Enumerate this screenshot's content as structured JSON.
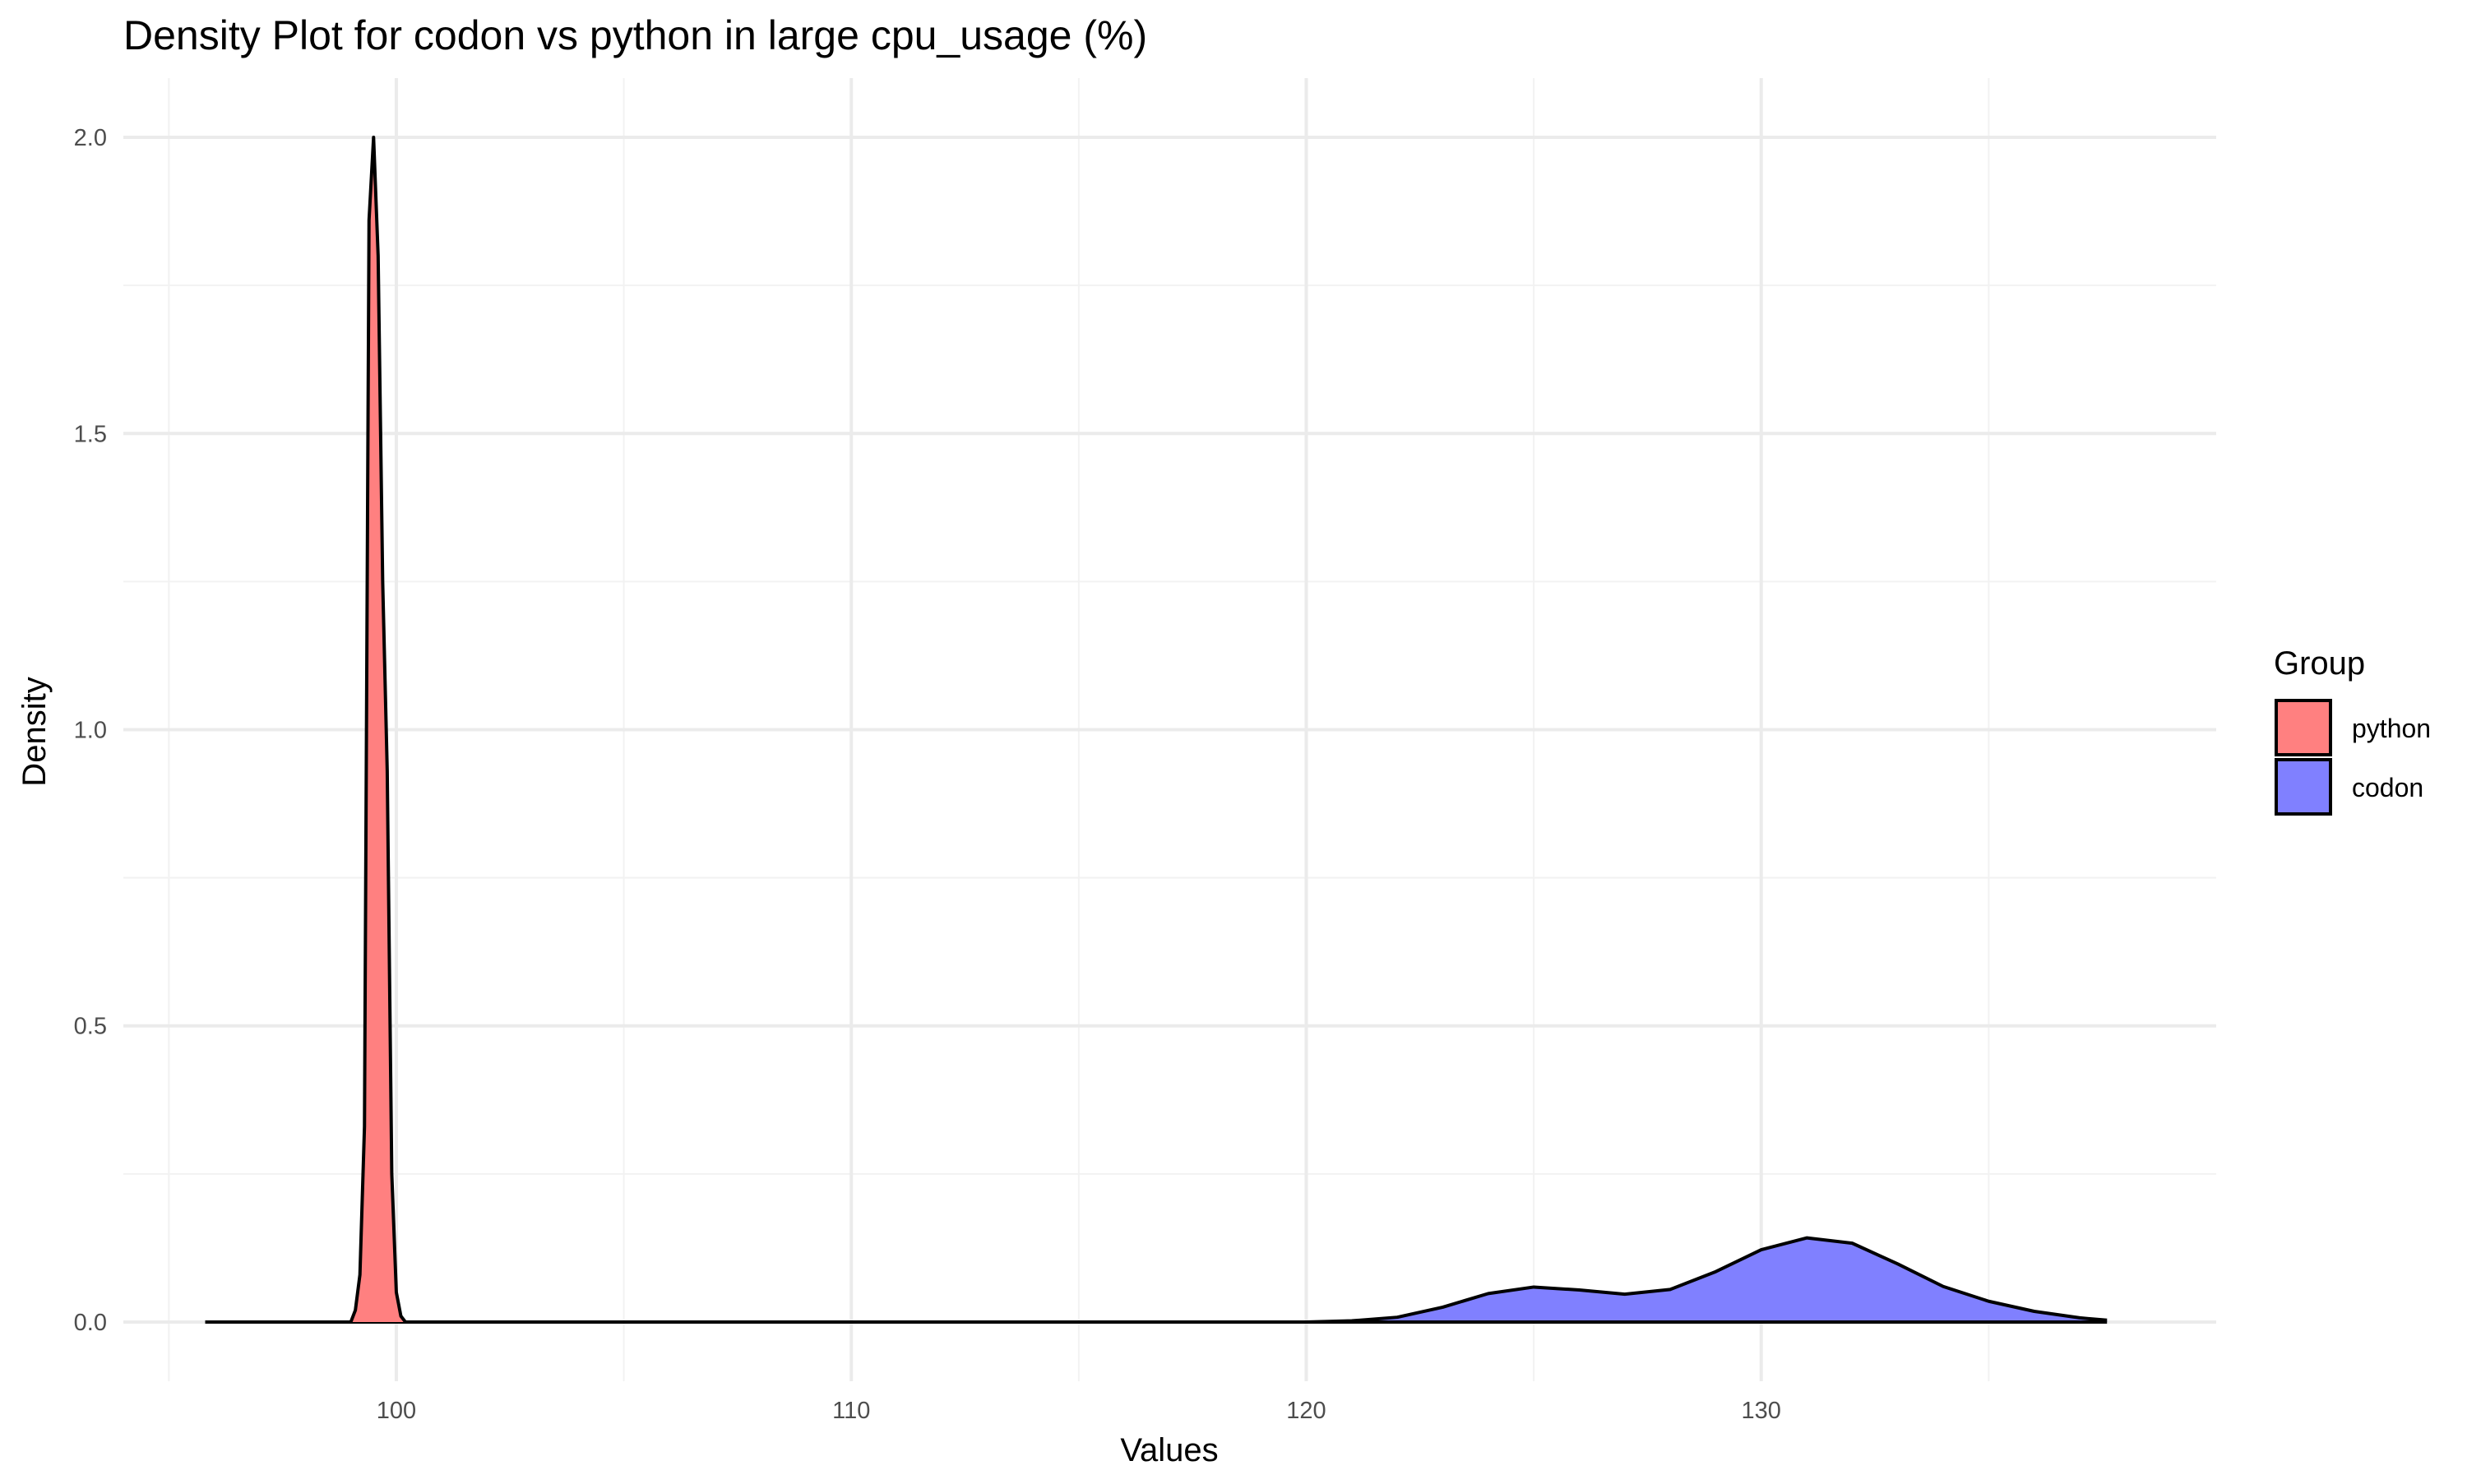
{
  "chart_data": {
    "type": "area",
    "title": "Density Plot for codon vs python in large cpu_usage (%)",
    "xlabel": "Values",
    "ylabel": "Density",
    "xlim": [
      94,
      140
    ],
    "ylim": [
      -0.1,
      2.1
    ],
    "x_ticks": [
      100,
      110,
      120,
      130
    ],
    "x_tick_labels": [
      "100",
      "110",
      "120",
      "130"
    ],
    "y_ticks": [
      0.0,
      0.5,
      1.0,
      1.5,
      2.0
    ],
    "y_tick_labels": [
      "0.0",
      "0.5",
      "1.0",
      "1.5",
      "2.0"
    ],
    "grid": true,
    "legend": {
      "title": "Group",
      "position": "right"
    },
    "series": [
      {
        "name": "python",
        "color": "#FF8080",
        "x": [
          95.8,
          99.0,
          99.1,
          99.2,
          99.3,
          99.4,
          99.5,
          99.6,
          99.7,
          99.8,
          99.9,
          100.0,
          100.1,
          100.2,
          101.0,
          137.6
        ],
        "y": [
          0.0,
          0.0,
          0.02,
          0.08,
          0.33,
          1.86,
          2.0,
          1.8,
          1.25,
          0.93,
          0.25,
          0.05,
          0.01,
          0.0,
          0.0,
          0.0
        ]
      },
      {
        "name": "codon",
        "color": "#8080FF",
        "x": [
          95.8,
          120.0,
          121.0,
          122.0,
          123.0,
          124.0,
          125.0,
          126.0,
          127.0,
          128.0,
          129.0,
          130.0,
          131.0,
          132.0,
          133.0,
          134.0,
          135.0,
          136.0,
          137.0,
          137.6
        ],
        "y": [
          0.0,
          0.0,
          0.002,
          0.008,
          0.025,
          0.048,
          0.059,
          0.054,
          0.047,
          0.055,
          0.085,
          0.122,
          0.142,
          0.133,
          0.098,
          0.06,
          0.035,
          0.018,
          0.007,
          0.003
        ]
      }
    ]
  }
}
